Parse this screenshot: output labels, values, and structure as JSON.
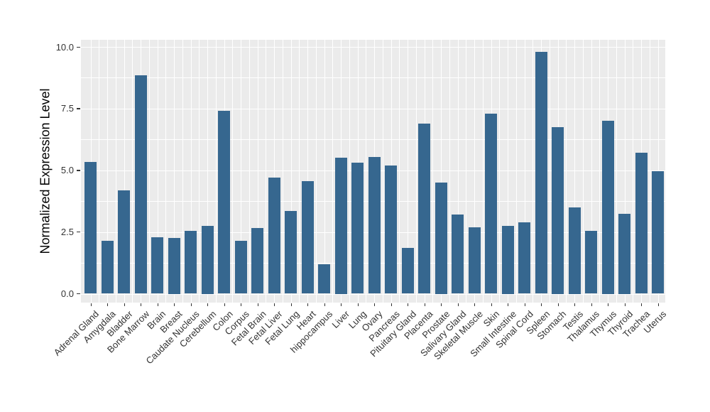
{
  "chart_data": {
    "type": "bar",
    "title": "",
    "xlabel": "",
    "ylabel": "Normalized Expression Level",
    "categories": [
      "Adrenal Gland",
      "Amygdala",
      "Bladder",
      "Bone Marrow",
      "Brain",
      "Breast",
      "Caudate Nucleus",
      "Cerebellum",
      "Colon",
      "Corpus",
      "Fetal Brain",
      "Fetal Liver",
      "Fetal Lung",
      "Heart",
      "hippocampus",
      "Liver",
      "Lung",
      "Ovary",
      "Pancreas",
      "Pituitary Gland",
      "Placenta",
      "Prostate",
      "Salivary Gland",
      "Skeletal Muscle",
      "Skin",
      "Small Intestine",
      "Spinal Cord",
      "Spleen",
      "Stomach",
      "Testis",
      "Thalamus",
      "Thymus",
      "Thyroid",
      "Trachea",
      "Uterus"
    ],
    "values": [
      5.35,
      2.15,
      4.2,
      8.85,
      2.3,
      2.25,
      2.55,
      2.75,
      7.4,
      2.15,
      2.65,
      4.7,
      3.35,
      4.55,
      1.2,
      5.5,
      5.3,
      5.55,
      5.2,
      1.85,
      6.9,
      4.5,
      3.2,
      2.7,
      7.3,
      2.75,
      2.9,
      9.8,
      6.75,
      3.5,
      2.55,
      7.0,
      3.25,
      5.7,
      4.95
    ],
    "ytick_values": [
      0.0,
      2.5,
      5.0,
      7.5,
      10.0
    ],
    "ytick_labels": [
      "0.0",
      "2.5",
      "5.0",
      "7.5",
      "10.0"
    ],
    "yminor_values": [
      1.25,
      3.75,
      6.25,
      8.75
    ],
    "ylim": [
      0,
      10
    ],
    "x_label_rotation_deg": 45,
    "grid": "on",
    "legend": "none",
    "bar_color": "#36678F",
    "panel_background": "#EBEBEB",
    "gridline_color": "#FFFFFF",
    "axis_text_color": "#333333",
    "axis_title_color": "#000000",
    "figure_background": "#FFFFFF"
  }
}
